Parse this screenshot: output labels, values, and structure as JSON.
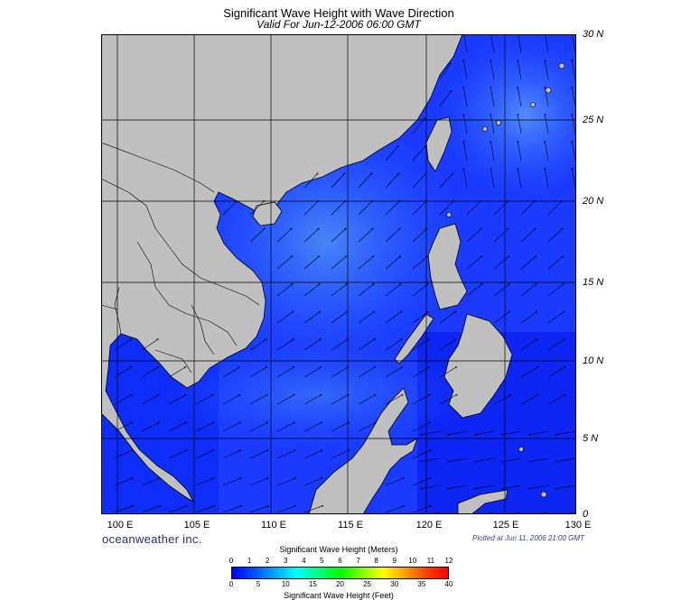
{
  "title": "Significant Wave Height with Wave Direction",
  "subtitle": "Valid For Jun-12-2006 06:00 GMT",
  "brand": "oceanweather inc.",
  "plotted": "Plotted at Jun 11, 2006 21:00 GMT",
  "lat_labels": [
    "30 N",
    "25 N",
    "20 N",
    "15 N",
    "10 N",
    "5 N",
    "0"
  ],
  "lon_labels": [
    "100 E",
    "105 E",
    "110 E",
    "115 E",
    "120 E",
    "125 E",
    "130 E"
  ],
  "colorbar": {
    "title_meters": "Significant Wave Height (Meters)",
    "title_feet": "Significant Wave Height (Feet)",
    "meter_ticks": [
      "0",
      "1",
      "2",
      "3",
      "4",
      "5",
      "6",
      "7",
      "8",
      "9",
      "10",
      "11",
      "12"
    ],
    "feet_ticks": [
      "0",
      "5",
      "10",
      "15",
      "20",
      "25",
      "30",
      "35",
      "40"
    ],
    "colors": [
      "#0000ff",
      "#0050ff",
      "#00a8ff",
      "#00ffff",
      "#00ff80",
      "#00ff00",
      "#80ff00",
      "#ffff00",
      "#ffa000",
      "#ff4000",
      "#ff0000"
    ]
  },
  "map": {
    "land_color": "#c0c0c0",
    "ocean_base_color": "#1a3bff",
    "calm_color": "#0014e0",
    "higher_wave_color": "#3c78f0"
  }
}
